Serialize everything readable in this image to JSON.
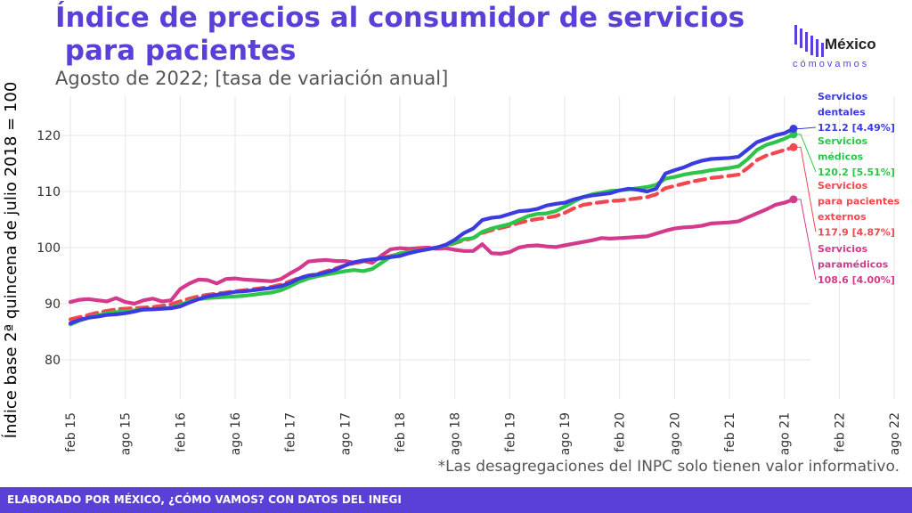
{
  "title_line1": "Índice de precios al consumidor de servicios",
  "title_line2": " para pacientes",
  "subtitle": "Agosto de 2022; [tasa de variación anual]",
  "logo": {
    "name": "México",
    "tagline": "cómovamos"
  },
  "note": "*Las desagregaciones del INPC solo tienen valor informativo.",
  "footer": "ELABORADO POR MÉXICO, ¿CÓMO VAMOS? CON DATOS DEL INEGI",
  "chart_data": {
    "type": "line",
    "ylabel": "Índice base 2ª quincena de julio 2018 = 100",
    "ylim": [
      73,
      127
    ],
    "yticks": [
      80,
      90,
      100,
      110,
      120
    ],
    "x_start": "2015-02",
    "x_end": "2022-08",
    "x_tick_labels": [
      "feb 15",
      "ago 15",
      "feb 16",
      "ago 16",
      "feb 17",
      "ago 17",
      "feb 18",
      "ago 18",
      "feb 19",
      "ago 19",
      "feb 20",
      "ago 20",
      "feb 21",
      "ago 21",
      "feb 22",
      "ago 22"
    ],
    "grid": true,
    "series": [
      {
        "name": "Servicios dentales",
        "label_lines": [
          "Servicios",
          "dentales",
          "121.2 [4.49%]"
        ],
        "color": "#3b3be0",
        "dashed": false,
        "values": [
          86.5,
          87.1,
          87.5,
          87.7,
          88.0,
          88.1,
          88.3,
          88.6,
          89.0,
          89.0,
          89.1,
          89.2,
          89.5,
          90.2,
          90.8,
          91.3,
          91.6,
          91.8,
          92.1,
          92.2,
          92.4,
          92.6,
          92.8,
          93.1,
          93.7,
          94.5,
          95.0,
          95.2,
          95.6,
          96.1,
          96.8,
          97.4,
          97.7,
          97.9,
          98.1,
          98.3,
          98.5,
          99.0,
          99.4,
          99.7,
          100.0,
          100.5,
          101.4,
          102.6,
          103.4,
          104.9,
          105.3,
          105.5,
          106.0,
          106.5,
          106.6,
          106.9,
          107.5,
          107.8,
          108.0,
          108.6,
          109.0,
          109.3,
          109.5,
          109.7,
          110.2,
          110.5,
          110.3,
          110.0,
          110.5,
          113.2,
          113.8,
          114.3,
          115.0,
          115.5,
          115.8,
          115.9,
          116.0,
          116.2,
          117.5,
          118.8,
          119.4,
          120.0,
          120.4,
          121.2
        ]
      },
      {
        "name": "Servicios médicos",
        "label_lines": [
          "Servicios",
          "médicos",
          "120.2 [5.51%]"
        ],
        "color": "#2ec44a",
        "dashed": false,
        "values": [
          86.3,
          87.0,
          87.5,
          87.9,
          88.3,
          88.5,
          88.6,
          88.8,
          88.9,
          89.0,
          89.1,
          89.3,
          89.8,
          90.4,
          90.8,
          91.0,
          91.1,
          91.2,
          91.3,
          91.4,
          91.6,
          91.8,
          92.0,
          92.4,
          93.1,
          93.9,
          94.5,
          94.9,
          95.2,
          95.5,
          95.8,
          96.0,
          95.8,
          96.2,
          97.3,
          98.4,
          99.0,
          99.2,
          99.4,
          99.7,
          100.0,
          100.4,
          100.9,
          101.5,
          101.7,
          102.8,
          103.4,
          103.8,
          104.2,
          104.9,
          105.6,
          106.0,
          106.1,
          106.5,
          107.3,
          108.2,
          109.0,
          109.5,
          109.8,
          110.1,
          110.2,
          110.4,
          110.6,
          110.8,
          111.2,
          112.3,
          112.6,
          113.0,
          113.3,
          113.5,
          113.8,
          114.0,
          114.2,
          114.5,
          115.8,
          117.4,
          118.3,
          118.8,
          119.4,
          120.2
        ]
      },
      {
        "name": "Servicios para pacientes externos",
        "label_lines": [
          "Servicios",
          "para pacientes",
          "externos",
          "117.9 [4.87%]"
        ],
        "color": "#f0484e",
        "dashed": true,
        "values": [
          87.2,
          87.6,
          88.0,
          88.4,
          88.7,
          89.0,
          89.1,
          89.2,
          89.3,
          89.4,
          89.6,
          89.9,
          90.4,
          90.9,
          91.3,
          91.6,
          91.8,
          92.0,
          92.2,
          92.4,
          92.6,
          92.8,
          93.0,
          93.4,
          94.0,
          94.6,
          95.0,
          95.3,
          95.8,
          96.3,
          96.8,
          97.2,
          97.5,
          97.8,
          98.1,
          98.5,
          98.9,
          99.3,
          99.6,
          99.9,
          100.0,
          100.3,
          100.8,
          101.3,
          101.7,
          102.6,
          103.1,
          103.5,
          103.9,
          104.4,
          104.8,
          105.1,
          105.3,
          105.6,
          106.2,
          107.0,
          107.6,
          107.9,
          108.1,
          108.3,
          108.4,
          108.6,
          108.8,
          109.0,
          109.5,
          110.6,
          111.0,
          111.4,
          111.8,
          112.1,
          112.4,
          112.6,
          112.8,
          113.0,
          114.2,
          115.6,
          116.4,
          116.9,
          117.4,
          117.9
        ]
      },
      {
        "name": "Servicios paramédicos",
        "label_lines": [
          "Servicios",
          "paramédicos",
          "108.6 [4.00%]"
        ],
        "color": "#d43a8c",
        "dashed": false,
        "values": [
          90.3,
          90.7,
          90.8,
          90.6,
          90.4,
          91.0,
          90.3,
          90.0,
          90.6,
          90.9,
          90.4,
          90.6,
          92.6,
          93.6,
          94.3,
          94.2,
          93.6,
          94.4,
          94.5,
          94.3,
          94.2,
          94.1,
          94.0,
          94.4,
          95.4,
          96.3,
          97.5,
          97.7,
          97.8,
          97.6,
          97.6,
          97.3,
          97.6,
          97.3,
          98.6,
          99.7,
          99.9,
          99.8,
          99.9,
          100.0,
          99.8,
          99.9,
          99.6,
          99.4,
          99.4,
          100.6,
          99.0,
          98.9,
          99.2,
          100.0,
          100.3,
          100.4,
          100.2,
          100.1,
          100.4,
          100.7,
          101.0,
          101.3,
          101.7,
          101.6,
          101.7,
          101.8,
          101.9,
          102.0,
          102.5,
          103.0,
          103.4,
          103.6,
          103.7,
          103.9,
          104.3,
          104.4,
          104.5,
          104.7,
          105.4,
          106.1,
          106.8,
          107.6,
          108.0,
          108.6
        ]
      }
    ]
  }
}
